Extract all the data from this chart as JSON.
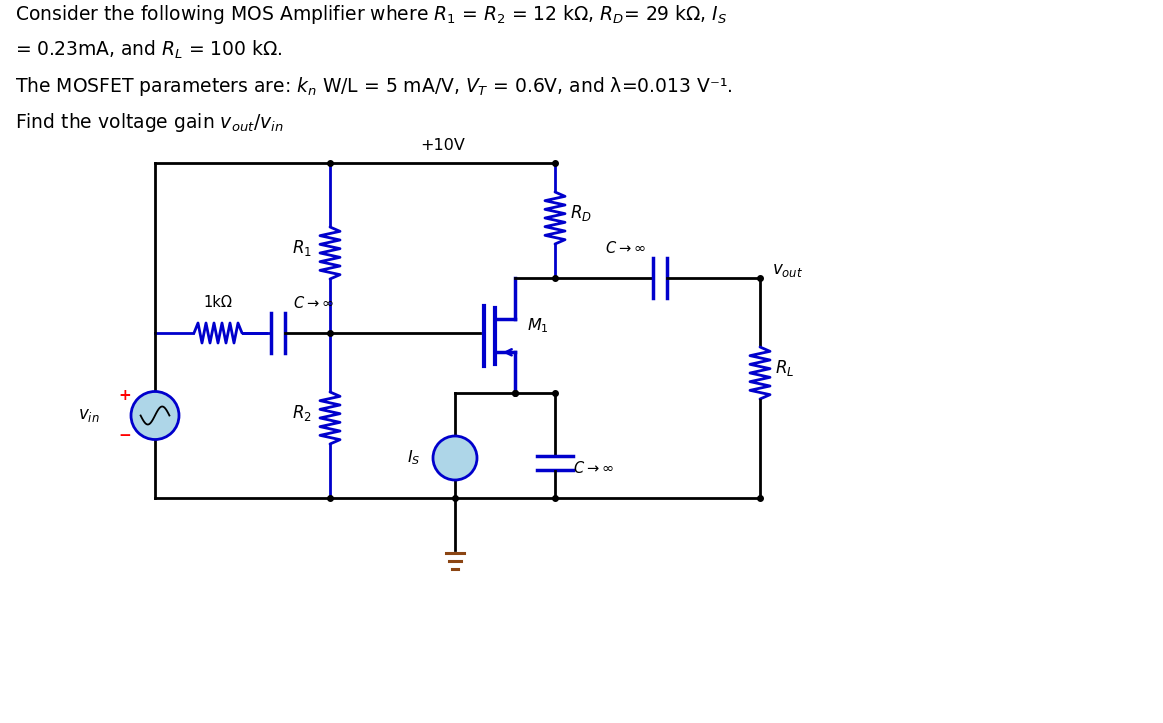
{
  "line1": "Consider the following MOS Amplifier where $R_1$ = $R_2$ = 12 kΩ, $R_D$= 29 kΩ, $I_S$",
  "line2": "= 0.23mA, and $R_L$ = 100 kΩ.",
  "line3": "The MOSFET parameters are: $k_n$ W/L = 5 mA/V, $V_T$ = 0.6V, and λ=0.013 V⁻¹.",
  "line4": "Find the voltage gain $v_{out}$/$v_{in}$",
  "wire_color": "black",
  "comp_color": "#0000cc",
  "bg_color": "white",
  "gnd_color": "#8B4513",
  "cs_face_color": "#aed6e8",
  "red_arrow": "red"
}
